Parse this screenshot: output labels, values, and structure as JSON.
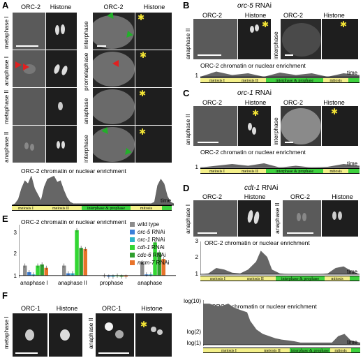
{
  "panels": {
    "A": {
      "letter": "A",
      "left_headers": [
        "ORC-2",
        "Histone"
      ],
      "right_headers": [
        "ORC-2",
        "Histone"
      ],
      "left_rows": [
        "metaphase I",
        "anaphase I",
        "metaphase II",
        "anaphase II"
      ],
      "right_rows": [
        "interphase",
        "prometaphase",
        "anaphase",
        "interphase"
      ],
      "chart_title": "ORC-2 chromatin or nuclear enrichment",
      "time_label": "time",
      "phases": [
        "meiosis I",
        "meiosis II",
        "interphase & prophase",
        "mitosis"
      ]
    },
    "B": {
      "letter": "B",
      "rnai_gene": "orc-5",
      "rnai_suffix": " RNAi",
      "headers": [
        "ORC-2",
        "Histone",
        "ORC-2",
        "Histone"
      ],
      "rows": [
        "anaphase II",
        "interphase"
      ],
      "chart_title": "ORC-2 chromatin or nuclear enrichment",
      "y_tick": "1",
      "time_label": "time",
      "phases": [
        "meiosis I",
        "meiosis II",
        "interphase & prophase",
        "mitosis"
      ]
    },
    "C": {
      "letter": "C",
      "rnai_gene": "orc-1",
      "rnai_suffix": " RNAi",
      "headers": [
        "ORC-2",
        "Histone",
        "ORC-2",
        "Histone"
      ],
      "rows": [
        "anaphase II",
        "interphase"
      ],
      "chart_title": "ORC-2 chromatin or nuclear enrichment",
      "y_tick": "1",
      "time_label": "time",
      "phases": [
        "meiosis I",
        "meiosis II",
        "interphase & prophase",
        "mitosis"
      ]
    },
    "D": {
      "letter": "D",
      "rnai_gene": "cdt-1",
      "rnai_suffix": " RNAi",
      "headers": [
        "ORC-2",
        "Histone",
        "ORC-2",
        "Histone"
      ],
      "rows": [
        "anaphase I",
        "anaphase II"
      ],
      "chart_title": "ORC-2 chromatin or nuclear enrichment",
      "y_ticks": [
        "3",
        "2",
        "1"
      ],
      "time_label": "time",
      "phases": [
        "meiosis I",
        "meiosis II",
        "interphase & prophase",
        "mitosis"
      ]
    },
    "E": {
      "letter": "E",
      "chart_title": "ORC-2 chromatin or nuclear enrichment",
      "y_ticks": [
        "3",
        "2",
        "1"
      ],
      "categories": [
        "anaphase I",
        "anaphase II",
        "prophase",
        "anaphase"
      ],
      "legend": [
        {
          "label": "wild type",
          "italic": false,
          "color": "#8c8c8c"
        },
        {
          "label": "orc-5",
          "suffix": " RNAi",
          "italic": true,
          "color": "#3b7fd9"
        },
        {
          "label": "orc-1",
          "suffix": " RNAi",
          "italic": true,
          "color": "#2fb5c9"
        },
        {
          "label": "cdt-1",
          "suffix": " RNAi",
          "italic": true,
          "color": "#33d633"
        },
        {
          "label": "cdc-6",
          "suffix": " RNAi",
          "italic": true,
          "color": "#2e9e2e"
        },
        {
          "label": "mcm-7",
          "suffix": " RNAi",
          "italic": true,
          "color": "#e8732a"
        }
      ]
    },
    "F": {
      "letter": "F",
      "headers": [
        "ORC-1",
        "Histone",
        "ORC-1",
        "Histone"
      ],
      "rows": [
        "metaphase I",
        "anaphase II"
      ],
      "chart_title": "ORC-1 chromatin or nuclear enrichment",
      "y_ticks": [
        "log(10)",
        "log(2)",
        "log(1)"
      ],
      "time_label": "time",
      "phases": [
        "meiosis I",
        "meiosis II",
        "interphase & prophase",
        "mitosis"
      ]
    }
  },
  "chart_data": [
    {
      "type": "area",
      "panel": "A",
      "title": "ORC-2 chromatin or nuclear enrichment",
      "xlabel": "time",
      "x": [
        0,
        2,
        4,
        6,
        8,
        10,
        12,
        14,
        16,
        18,
        20,
        22,
        24,
        26,
        28,
        30,
        32,
        34,
        36,
        38,
        40,
        42,
        44,
        46,
        48,
        50,
        52,
        54,
        56,
        58,
        60,
        62,
        64,
        66,
        68,
        70,
        72,
        74,
        76,
        78,
        80,
        82,
        84,
        86,
        88,
        90,
        92,
        94,
        96,
        98,
        100
      ],
      "y": [
        0,
        0.05,
        0.2,
        0.55,
        0.8,
        0.7,
        0.95,
        0.55,
        0.35,
        0.15,
        0.6,
        0.85,
        0.9,
        0.95,
        0.75,
        0.8,
        0.5,
        0.25,
        0.1,
        0.05,
        0.05,
        0.05,
        0.05,
        0.05,
        0.05,
        0.05,
        0.05,
        0.05,
        0.05,
        0.05,
        0.05,
        0.05,
        0.05,
        0.05,
        0.05,
        0.05,
        0.05,
        0.05,
        0.05,
        0.05,
        0.05,
        0.05,
        0.05,
        0.05,
        0.1,
        0.65,
        0.85,
        0.7,
        0.3,
        0.1,
        0.05
      ]
    },
    {
      "type": "area",
      "panel": "B",
      "title": "ORC-2 chromatin or nuclear enrichment",
      "xlabel": "time",
      "x": [
        0,
        10,
        20,
        30,
        40,
        50,
        60,
        70,
        80,
        90,
        100
      ],
      "y": [
        1.0,
        1.15,
        1.05,
        1.1,
        1.0,
        1.12,
        1.05,
        1.1,
        1.0,
        1.1,
        1.05
      ]
    },
    {
      "type": "area",
      "panel": "C",
      "title": "ORC-2 chromatin or nuclear enrichment",
      "xlabel": "time",
      "x": [
        0,
        10,
        20,
        30,
        40,
        50,
        60,
        70,
        80,
        90,
        100
      ],
      "y": [
        1.0,
        1.05,
        1.1,
        1.05,
        1.12,
        1.0,
        1.05,
        1.0,
        1.02,
        1.1,
        1.05
      ]
    },
    {
      "type": "area",
      "panel": "D",
      "title": "ORC-2 chromatin or nuclear enrichment",
      "xlabel": "time",
      "ylim": [
        1,
        3
      ],
      "x": [
        0,
        5,
        10,
        15,
        20,
        25,
        30,
        35,
        38,
        42,
        45,
        50,
        55,
        60,
        65,
        70,
        75,
        80,
        85,
        90,
        95,
        100
      ],
      "y": [
        1.0,
        1.05,
        1.4,
        1.3,
        1.1,
        1.05,
        1.3,
        1.8,
        2.5,
        2.1,
        1.3,
        1.05,
        1.0,
        1.0,
        1.0,
        1.0,
        1.0,
        1.05,
        1.4,
        1.5,
        1.2,
        1.0
      ]
    },
    {
      "type": "bar",
      "panel": "E",
      "title": "ORC-2 chromatin or nuclear enrichment",
      "ylim": [
        1,
        3.3
      ],
      "categories": [
        "anaphase I",
        "anaphase II",
        "prophase",
        "anaphase"
      ],
      "series": [
        {
          "name": "wild type",
          "values": [
            1.45,
            1.45,
            1.0,
            1.6
          ]
        },
        {
          "name": "orc-5 RNAi",
          "values": [
            1.15,
            1.1,
            0.95,
            1.05
          ]
        },
        {
          "name": "orc-1 RNAi",
          "values": [
            1.05,
            1.1,
            0.95,
            1.05
          ]
        },
        {
          "name": "cdt-1 RNAi",
          "values": [
            1.45,
            3.05,
            1.0,
            2.5
          ]
        },
        {
          "name": "cdc-6 RNAi",
          "values": [
            1.5,
            2.25,
            0.95,
            2.05
          ]
        },
        {
          "name": "mcm-7 RNAi",
          "values": [
            1.35,
            2.2,
            0.95,
            1.75
          ]
        }
      ]
    },
    {
      "type": "area",
      "panel": "F",
      "title": "ORC-1 chromatin or nuclear enrichment",
      "xlabel": "time",
      "x": [
        0,
        4,
        8,
        12,
        16,
        20,
        24,
        28,
        30,
        34,
        38,
        42,
        46,
        50,
        54,
        58,
        62,
        66,
        70,
        74,
        78,
        82,
        86,
        90,
        94,
        100
      ],
      "y": [
        0.95,
        0.95,
        0.9,
        0.9,
        0.95,
        0.85,
        0.8,
        0.75,
        0.55,
        0.35,
        0.25,
        0.2,
        0.15,
        0.12,
        0.1,
        0.08,
        0.05,
        0.05,
        0.05,
        0.05,
        0.05,
        0.05,
        0.2,
        0.25,
        0.1,
        0.05
      ]
    }
  ]
}
